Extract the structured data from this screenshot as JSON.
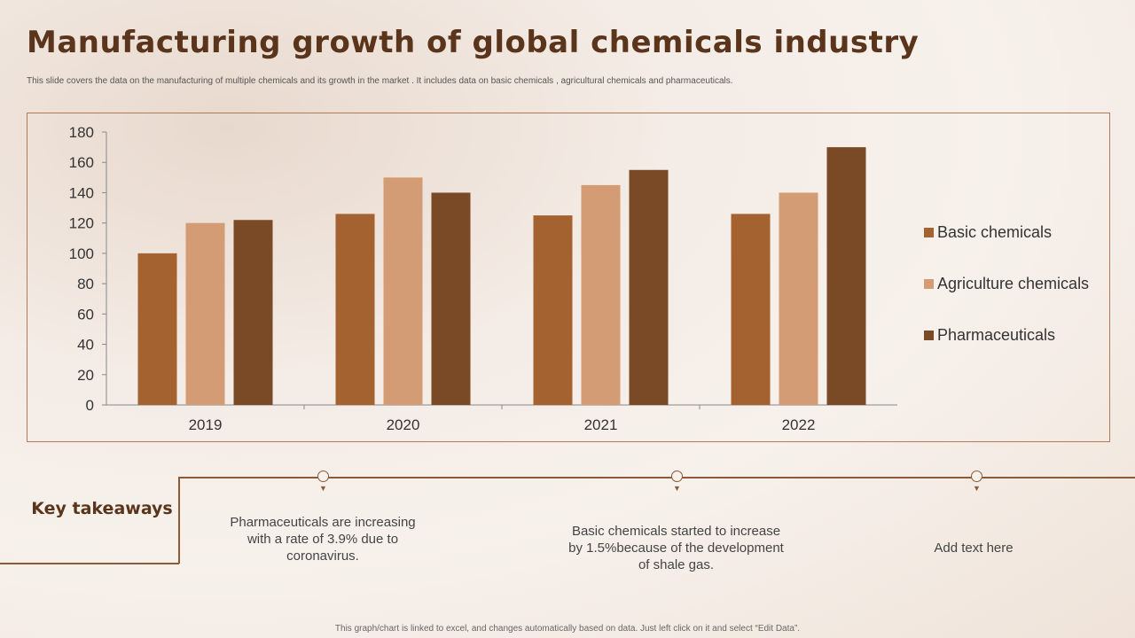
{
  "title": "Manufacturing growth of global chemicals industry",
  "subtitle": "This slide covers the data on the manufacturing of multiple chemicals  and its growth in the market . It includes data on  basic chemicals , agricultural chemicals and pharmaceuticals.",
  "chart_data": {
    "type": "bar",
    "categories": [
      "2019",
      "2020",
      "2021",
      "2022"
    ],
    "series": [
      {
        "name": "Basic chemicals",
        "color": "#A3622F",
        "values": [
          100,
          126,
          125,
          126
        ]
      },
      {
        "name": "Agriculture chemicals",
        "color": "#D49C74",
        "values": [
          120,
          150,
          145,
          140
        ]
      },
      {
        "name": "Pharmaceuticals",
        "color": "#7A4A27",
        "values": [
          122,
          140,
          155,
          170
        ]
      }
    ],
    "ylim": [
      0,
      180
    ],
    "yticks": [
      "0",
      "20",
      "40",
      "60",
      "80",
      "100",
      "120",
      "140",
      "160",
      "180"
    ],
    "legend": "right",
    "grid": false
  },
  "takeaways": {
    "label": "Key takeaways",
    "items": [
      "Pharmaceuticals  are increasing  with a rate of  3.9% due to coronavirus.",
      "Basic chemicals started to increase by  1.5%because of the development  of shale gas.",
      "Add text here"
    ]
  },
  "footer": "This graph/chart is linked to excel, and changes automatically based on data. Just left click on it and select “Edit Data”."
}
